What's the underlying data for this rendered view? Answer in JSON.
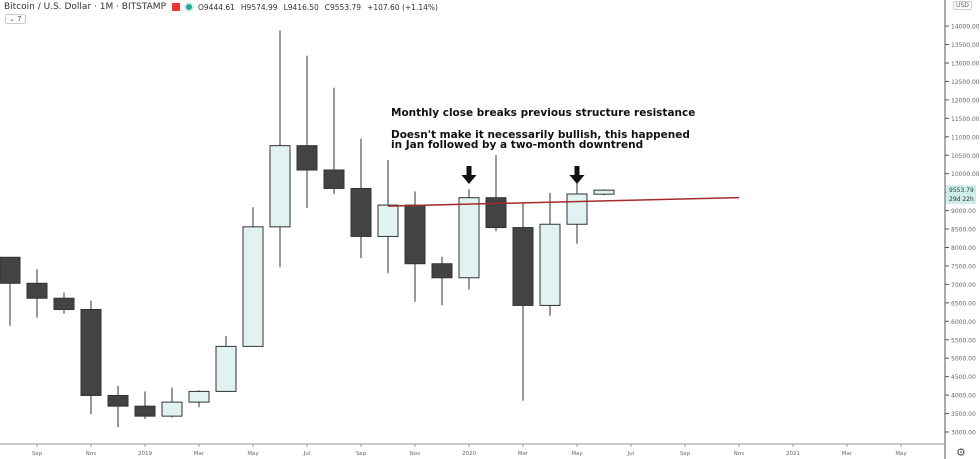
{
  "header": {
    "symbol": "Bitcoin / U.S. Dollar · 1M · BITSTAMP",
    "open": "O9444.61",
    "high": "H9574.99",
    "low": "L9416.50",
    "close": "C9553.79",
    "change": "+107.60 (+1.14%)",
    "collapse_label": "⌄ 7"
  },
  "axis": {
    "currency": "USD",
    "last_price": "9553.79",
    "countdown": "29d 22h",
    "settings_icon": "gear-icon"
  },
  "colors": {
    "up_fill": "#e0f2f1",
    "down_fill": "#434343",
    "outline": "#333333",
    "resistance": "#a52a2a",
    "price_tag": "#cdeee8"
  },
  "annotations": {
    "line1": "Monthly close breaks previous structure resistance",
    "line2": "Doesn't make it necessarily bullish, this happened",
    "line3": "in Jan followed by a two-month downtrend"
  },
  "chart_data": {
    "type": "candlestick",
    "ylim": [
      2750,
      14450
    ],
    "yticks": [
      "3000.00",
      "3500.00",
      "4000.00",
      "4500.00",
      "5000.00",
      "5500.00",
      "6000.00",
      "6500.00",
      "7000.00",
      "7500.00",
      "8000.00",
      "8500.00",
      "9000.00",
      "9500.00",
      "10000.00",
      "10500.00",
      "11000.00",
      "11500.00",
      "12000.00",
      "12500.00",
      "13000.00",
      "13500.00",
      "14000.00"
    ],
    "xticks": [
      "Sep",
      "Nov",
      "2019",
      "Mar",
      "May",
      "Jul",
      "Sep",
      "Nov",
      "2020",
      "Mar",
      "May",
      "Jul",
      "Sep",
      "Nov",
      "2021",
      "Mar",
      "May"
    ],
    "candles": [
      {
        "month": "2018-08",
        "o": 7735,
        "h": 7750,
        "l": 5880,
        "c": 7030
      },
      {
        "month": "2018-09",
        "o": 7030,
        "h": 7410,
        "l": 6100,
        "c": 6625
      },
      {
        "month": "2018-10",
        "o": 6625,
        "h": 6780,
        "l": 6200,
        "c": 6320
      },
      {
        "month": "2018-11",
        "o": 6320,
        "h": 6560,
        "l": 3480,
        "c": 3990
      },
      {
        "month": "2018-12",
        "o": 3990,
        "h": 4250,
        "l": 3130,
        "c": 3700
      },
      {
        "month": "2019-01",
        "o": 3700,
        "h": 4100,
        "l": 3350,
        "c": 3430
      },
      {
        "month": "2019-02",
        "o": 3430,
        "h": 4200,
        "l": 3390,
        "c": 3810
      },
      {
        "month": "2019-03",
        "o": 3810,
        "h": 4130,
        "l": 3670,
        "c": 4100
      },
      {
        "month": "2019-04",
        "o": 4100,
        "h": 5600,
        "l": 4100,
        "c": 5320
      },
      {
        "month": "2019-05",
        "o": 5320,
        "h": 9090,
        "l": 5320,
        "c": 8560
      },
      {
        "month": "2019-06",
        "o": 8560,
        "h": 13880,
        "l": 7460,
        "c": 10760
      },
      {
        "month": "2019-07",
        "o": 10760,
        "h": 13200,
        "l": 9070,
        "c": 10100
      },
      {
        "month": "2019-08",
        "o": 10100,
        "h": 12330,
        "l": 9450,
        "c": 9600
      },
      {
        "month": "2019-09",
        "o": 9600,
        "h": 10950,
        "l": 7710,
        "c": 8300
      },
      {
        "month": "2019-10",
        "o": 8300,
        "h": 10370,
        "l": 7300,
        "c": 9150
      },
      {
        "month": "2019-11",
        "o": 9150,
        "h": 9520,
        "l": 6530,
        "c": 7560
      },
      {
        "month": "2019-12",
        "o": 7560,
        "h": 7750,
        "l": 6430,
        "c": 7180
      },
      {
        "month": "2020-01",
        "o": 7180,
        "h": 9580,
        "l": 6860,
        "c": 9350
      },
      {
        "month": "2020-02",
        "o": 9350,
        "h": 10500,
        "l": 8440,
        "c": 8540
      },
      {
        "month": "2020-03",
        "o": 8540,
        "h": 9200,
        "l": 3850,
        "c": 6430
      },
      {
        "month": "2020-04",
        "o": 6430,
        "h": 9480,
        "l": 6150,
        "c": 8630
      },
      {
        "month": "2020-05",
        "o": 8630,
        "h": 10070,
        "l": 8100,
        "c": 9450
      },
      {
        "month": "2020-06",
        "o": 9444.61,
        "h": 9574.99,
        "l": 9416.5,
        "c": 9553.79
      }
    ],
    "resistance_line": {
      "from": {
        "month": "2019-10",
        "price": 9150
      },
      "to": {
        "month": "2020-11",
        "price": 9350
      }
    },
    "arrows_at": [
      "2020-01",
      "2020-05"
    ]
  }
}
